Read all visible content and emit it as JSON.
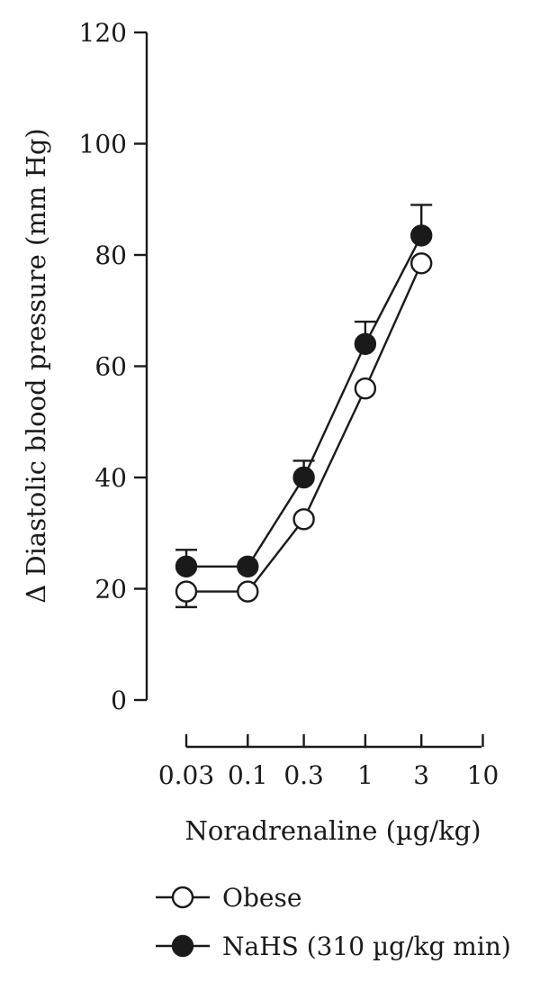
{
  "chart_data": {
    "type": "line",
    "title": "",
    "xlabel": "Noradrenaline (µg/kg)",
    "ylabel": "Δ Diastolic blood pressure (mm Hg)",
    "x_scale": "log",
    "xlim": [
      0.03,
      10
    ],
    "ylim": [
      0,
      120
    ],
    "x_ticks": [
      0.03,
      0.1,
      0.3,
      1,
      3,
      10
    ],
    "x_tick_labels": [
      "0.03",
      "0.1",
      "0.3",
      "1",
      "3",
      "10"
    ],
    "y_ticks": [
      0,
      20,
      40,
      60,
      80,
      100,
      120
    ],
    "y_tick_labels": [
      "0",
      "20",
      "40",
      "60",
      "80",
      "100",
      "120"
    ],
    "grid": false,
    "legend_position": "bottom",
    "series": [
      {
        "name": "Obese",
        "marker": "open-circle",
        "color": "#1a1a1a",
        "x": [
          0.03,
          0.1,
          0.3,
          1,
          3
        ],
        "y": [
          19.5,
          19.5,
          32.5,
          56,
          78.5
        ],
        "error": [
          2.8,
          0,
          0,
          0,
          0
        ],
        "error_direction": "down"
      },
      {
        "name": "NaHS (310 µg/kg min)",
        "marker": "filled-circle",
        "color": "#1a1a1a",
        "x": [
          0.03,
          0.1,
          0.3,
          1,
          3
        ],
        "y": [
          24,
          24,
          40,
          64,
          83.5
        ],
        "error": [
          3,
          0,
          3,
          4,
          5.5
        ],
        "error_direction": "up"
      }
    ]
  }
}
